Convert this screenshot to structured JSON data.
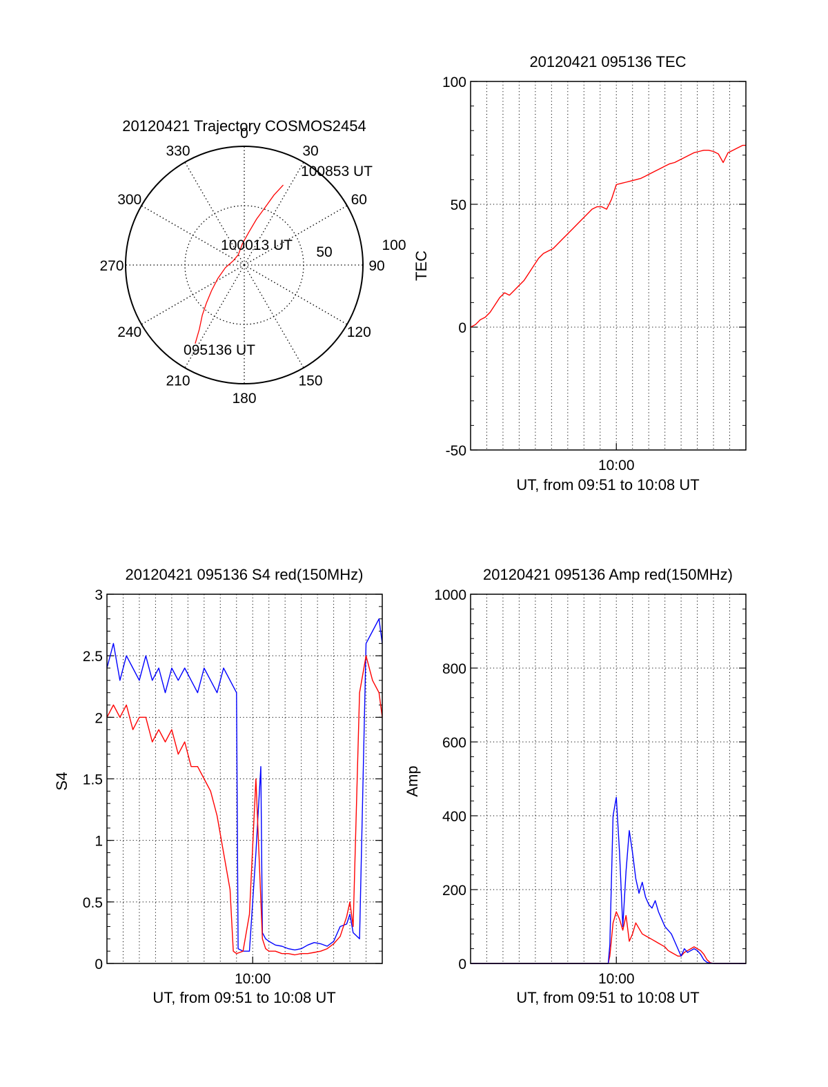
{
  "colors": {
    "primary": "#ff0000",
    "secondary": "#0000ff",
    "axis": "#000000",
    "grid": "#000000"
  },
  "chart_data": [
    {
      "id": "trajectory",
      "type": "polar",
      "title": "20120421 Trajectory COSMOS2454",
      "angle_ticks": [
        "0",
        "30",
        "60",
        "90",
        "120",
        "150",
        "180",
        "210",
        "240",
        "270",
        "300",
        "330"
      ],
      "radial_ticks": [
        "50",
        "100"
      ],
      "rmax": 100,
      "grid": true,
      "series": [
        {
          "color": "#ff0000",
          "points": [
            [
              212,
              78
            ],
            [
              215,
              66
            ],
            [
              220,
              55
            ],
            [
              225,
              45
            ],
            [
              232,
              35
            ],
            [
              243,
              25
            ],
            [
              262,
              16
            ],
            [
              290,
              10
            ],
            [
              330,
              10
            ],
            [
              355,
              18
            ],
            [
              8,
              28
            ],
            [
              15,
              40
            ],
            [
              20,
              52
            ],
            [
              23,
              64
            ],
            [
              26,
              75
            ]
          ]
        }
      ],
      "annotations": [
        {
          "text": "100853 UT",
          "angle": 30,
          "r": 92
        },
        {
          "text": "100013 UT",
          "angle": 0,
          "r": 0
        },
        {
          "text": "095136 UT",
          "angle": 210,
          "r": 78
        }
      ]
    },
    {
      "id": "tec",
      "type": "line",
      "title": "20120421 095136 TEC",
      "xlabel": "UT, from 09:51 to 10:08 UT",
      "ylabel": "TEC",
      "ylim": [
        -50,
        100
      ],
      "yticks": [
        "-50",
        "0",
        "50",
        "100"
      ],
      "xtick": "10:00",
      "xlim_min": [
        0,
        17
      ],
      "grid": true,
      "series": [
        {
          "color": "#ff0000",
          "x": [
            0.0,
            0.3,
            0.6,
            0.9,
            1.2,
            1.5,
            1.8,
            2.1,
            2.4,
            2.7,
            3.0,
            3.3,
            3.6,
            3.9,
            4.2,
            4.5,
            4.8,
            5.1,
            5.4,
            5.7,
            6.0,
            6.3,
            6.6,
            6.9,
            7.2,
            7.5,
            7.8,
            8.1,
            8.4,
            8.7,
            9.0,
            9.3,
            9.6,
            9.9,
            10.2,
            10.5,
            10.8,
            11.1,
            11.4,
            11.7,
            12.0,
            12.3,
            12.6,
            12.9,
            13.2,
            13.5,
            13.8,
            14.1,
            14.4,
            14.7,
            15.0,
            15.3,
            15.6,
            15.9,
            16.2,
            16.5,
            16.8,
            17.0
          ],
          "y": [
            0,
            1,
            3,
            4,
            6,
            9,
            12,
            14,
            13,
            15,
            17,
            19,
            22,
            25,
            28,
            30,
            31,
            32,
            34,
            36,
            38,
            40,
            42,
            44,
            46,
            48,
            49,
            49,
            48,
            52,
            58,
            58.5,
            59,
            59.5,
            60,
            60.5,
            61.5,
            62.5,
            63.5,
            64.5,
            65.5,
            66.5,
            67,
            68,
            69,
            70,
            71,
            71.5,
            72,
            72,
            71.5,
            70.5,
            67,
            71,
            72,
            73,
            74,
            74
          ]
        }
      ]
    },
    {
      "id": "s4",
      "type": "line",
      "title": "20120421 095136 S4 red(150MHz)",
      "xlabel": "UT, from 09:51 to 10:08 UT",
      "ylabel": "S4",
      "ylim": [
        0,
        3
      ],
      "yticks": [
        "0",
        "0.5",
        "1",
        "1.5",
        "2",
        "2.5",
        "3"
      ],
      "xtick": "10:00",
      "xlim_min": [
        0,
        17
      ],
      "grid": true,
      "series": [
        {
          "color": "#0000ff",
          "x": [
            0.0,
            0.4,
            0.8,
            1.2,
            1.6,
            2.0,
            2.4,
            2.8,
            3.2,
            3.6,
            4.0,
            4.4,
            4.8,
            5.2,
            5.6,
            6.0,
            6.4,
            6.8,
            7.2,
            7.6,
            8.0,
            8.1,
            8.4,
            8.8,
            9.2,
            9.5,
            9.6,
            9.8,
            10.0,
            10.4,
            10.8,
            11.2,
            11.6,
            12.0,
            12.4,
            12.8,
            13.2,
            13.6,
            14.0,
            14.4,
            14.8,
            15.0,
            15.2,
            15.6,
            16.0,
            16.4,
            16.8,
            17.0
          ],
          "y": [
            2.4,
            2.6,
            2.3,
            2.5,
            2.4,
            2.3,
            2.5,
            2.3,
            2.4,
            2.2,
            2.4,
            2.3,
            2.4,
            2.3,
            2.2,
            2.4,
            2.3,
            2.2,
            2.4,
            2.3,
            2.2,
            0.12,
            0.1,
            0.1,
            0.9,
            1.6,
            0.25,
            0.2,
            0.18,
            0.15,
            0.14,
            0.12,
            0.11,
            0.12,
            0.15,
            0.17,
            0.16,
            0.14,
            0.18,
            0.3,
            0.32,
            0.4,
            0.25,
            0.2,
            2.6,
            2.7,
            2.8,
            2.6
          ]
        },
        {
          "color": "#ff0000",
          "x": [
            0.0,
            0.4,
            0.8,
            1.2,
            1.6,
            2.0,
            2.4,
            2.8,
            3.2,
            3.6,
            4.0,
            4.4,
            4.8,
            5.2,
            5.6,
            6.0,
            6.4,
            6.8,
            7.2,
            7.6,
            7.8,
            8.0,
            8.2,
            8.4,
            8.8,
            9.2,
            9.6,
            9.8,
            10.0,
            10.4,
            10.8,
            11.2,
            11.6,
            12.0,
            12.4,
            12.8,
            13.2,
            13.6,
            14.0,
            14.4,
            14.8,
            15.0,
            15.2,
            15.6,
            16.0,
            16.4,
            16.8,
            17.0
          ],
          "y": [
            2.0,
            2.1,
            2.0,
            2.1,
            1.9,
            2.0,
            2.0,
            1.8,
            1.9,
            1.8,
            1.9,
            1.7,
            1.8,
            1.6,
            1.6,
            1.5,
            1.4,
            1.2,
            0.9,
            0.6,
            0.1,
            0.08,
            0.09,
            0.1,
            0.4,
            1.5,
            0.2,
            0.12,
            0.1,
            0.1,
            0.08,
            0.08,
            0.07,
            0.08,
            0.08,
            0.09,
            0.1,
            0.12,
            0.16,
            0.22,
            0.38,
            0.5,
            0.3,
            2.2,
            2.5,
            2.3,
            2.2,
            2.0
          ]
        }
      ]
    },
    {
      "id": "amp",
      "type": "line",
      "title": "20120421 095136 Amp red(150MHz)",
      "xlabel": "UT, from 09:51 to 10:08 UT",
      "ylabel": "Amp",
      "ylim": [
        0,
        1000
      ],
      "yticks": [
        "0",
        "200",
        "400",
        "600",
        "800",
        "1000"
      ],
      "xtick": "10:00",
      "xlim_min": [
        0,
        17
      ],
      "grid": true,
      "series": [
        {
          "color": "#ff0000",
          "x": [
            0.0,
            4.0,
            8.5,
            8.6,
            8.8,
            9.0,
            9.2,
            9.4,
            9.6,
            9.8,
            10.0,
            10.2,
            10.4,
            10.6,
            10.8,
            11.0,
            11.2,
            11.4,
            11.6,
            11.8,
            12.0,
            12.2,
            12.4,
            12.6,
            12.8,
            13.0,
            13.2,
            13.4,
            13.6,
            13.8,
            14.0,
            14.2,
            14.4,
            14.6,
            14.8,
            15.0,
            17.0
          ],
          "y": [
            0,
            0,
            0,
            20,
            110,
            140,
            120,
            90,
            130,
            60,
            80,
            110,
            95,
            80,
            75,
            70,
            65,
            60,
            55,
            50,
            45,
            35,
            30,
            25,
            20,
            20,
            30,
            35,
            40,
            45,
            40,
            35,
            25,
            10,
            2,
            0,
            0
          ]
        },
        {
          "color": "#0000ff",
          "x": [
            0.0,
            4.0,
            8.5,
            8.6,
            8.8,
            9.0,
            9.2,
            9.4,
            9.6,
            9.8,
            10.0,
            10.2,
            10.4,
            10.6,
            10.8,
            11.0,
            11.2,
            11.4,
            11.6,
            11.8,
            12.0,
            12.2,
            12.4,
            12.6,
            12.8,
            13.0,
            13.2,
            13.4,
            13.6,
            13.8,
            14.0,
            14.2,
            14.4,
            14.6,
            14.8,
            15.0,
            17.0
          ],
          "y": [
            0,
            0,
            0,
            50,
            400,
            450,
            300,
            100,
            250,
            360,
            300,
            230,
            190,
            220,
            180,
            160,
            150,
            170,
            140,
            120,
            100,
            90,
            80,
            60,
            40,
            20,
            40,
            30,
            35,
            40,
            35,
            25,
            10,
            3,
            1,
            0,
            0
          ]
        }
      ]
    }
  ]
}
